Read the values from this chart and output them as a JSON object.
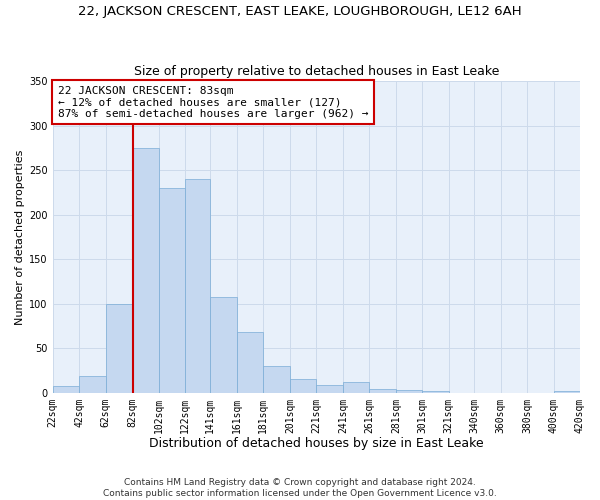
{
  "title": "22, JACKSON CRESCENT, EAST LEAKE, LOUGHBOROUGH, LE12 6AH",
  "subtitle": "Size of property relative to detached houses in East Leake",
  "xlabel": "Distribution of detached houses by size in East Leake",
  "ylabel": "Number of detached properties",
  "bar_left_edges": [
    22,
    42,
    62,
    82,
    102,
    122,
    141,
    161,
    181,
    201,
    221,
    241,
    261,
    281,
    301,
    321,
    340,
    360,
    380,
    400
  ],
  "bar_widths": [
    20,
    20,
    20,
    20,
    20,
    19,
    20,
    20,
    20,
    20,
    20,
    20,
    20,
    20,
    20,
    19,
    20,
    20,
    20,
    20
  ],
  "bar_heights": [
    7,
    19,
    100,
    275,
    230,
    240,
    107,
    68,
    30,
    15,
    9,
    12,
    4,
    3,
    2,
    0,
    0,
    0,
    0,
    2
  ],
  "bar_color": "#c5d8f0",
  "bar_edge_color": "#7aacd6",
  "x_tick_labels": [
    "22sqm",
    "42sqm",
    "62sqm",
    "82sqm",
    "102sqm",
    "122sqm",
    "141sqm",
    "161sqm",
    "181sqm",
    "201sqm",
    "221sqm",
    "241sqm",
    "261sqm",
    "281sqm",
    "301sqm",
    "321sqm",
    "340sqm",
    "360sqm",
    "380sqm",
    "400sqm",
    "420sqm"
  ],
  "x_tick_positions": [
    22,
    42,
    62,
    82,
    102,
    122,
    141,
    161,
    181,
    201,
    221,
    241,
    261,
    281,
    301,
    321,
    340,
    360,
    380,
    400,
    420
  ],
  "ylim": [
    0,
    350
  ],
  "xlim": [
    22,
    420
  ],
  "property_line_x": 83,
  "property_line_color": "#cc0000",
  "annotation_text": "22 JACKSON CRESCENT: 83sqm\n← 12% of detached houses are smaller (127)\n87% of semi-detached houses are larger (962) →",
  "annotation_box_color": "#ffffff",
  "annotation_box_edge_color": "#cc0000",
  "grid_color": "#cddaeb",
  "background_color": "#e8f0fa",
  "footer_text": "Contains HM Land Registry data © Crown copyright and database right 2024.\nContains public sector information licensed under the Open Government Licence v3.0.",
  "title_fontsize": 9.5,
  "subtitle_fontsize": 9,
  "xlabel_fontsize": 9,
  "ylabel_fontsize": 8,
  "tick_fontsize": 7,
  "annotation_fontsize": 8,
  "footer_fontsize": 6.5
}
